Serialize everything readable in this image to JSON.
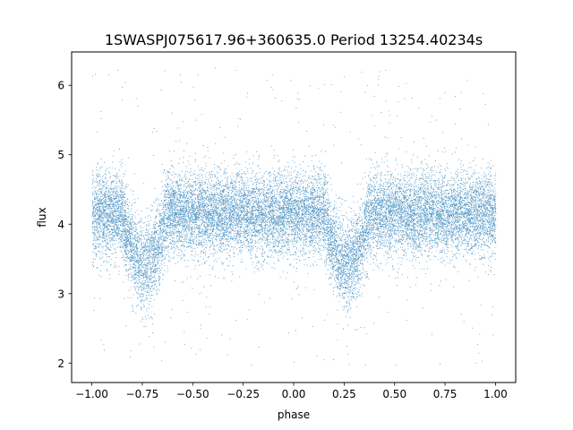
{
  "chart_data": {
    "type": "scatter",
    "title": "1SWASPJ075617.96+360635.0 Period 13254.40234s",
    "xlabel": "phase",
    "ylabel": "flux",
    "xlim": [
      -1.1,
      1.1
    ],
    "ylim": [
      1.72,
      6.48
    ],
    "xticks": [
      -1.0,
      -0.75,
      -0.5,
      -0.25,
      0.0,
      0.25,
      0.5,
      0.75,
      1.0
    ],
    "xtick_labels": [
      "−1.00",
      "−0.75",
      "−0.50",
      "−0.25",
      "0.00",
      "0.25",
      "0.50",
      "0.75",
      "1.00"
    ],
    "yticks": [
      2,
      3,
      4,
      5,
      6
    ],
    "ytick_labels": [
      "2",
      "3",
      "4",
      "5",
      "6"
    ],
    "grid": false,
    "legend": "none",
    "marker_color": "#1f77b4",
    "series": [
      {
        "description_of_shape": "eclipsing binary light curve folded over phase -1 to 1",
        "phase_range": [
          -1.0,
          1.0
        ],
        "baseline_flux": 4.15,
        "baseline_scatter": 0.3,
        "primary_eclipses": [
          {
            "phase": -0.74,
            "min_flux": 3.2,
            "width": 0.22
          },
          {
            "phase": 0.26,
            "min_flux": 3.2,
            "width": 0.22
          }
        ],
        "outlier_range": [
          1.95,
          6.3
        ],
        "approx_points": 60000
      }
    ]
  }
}
